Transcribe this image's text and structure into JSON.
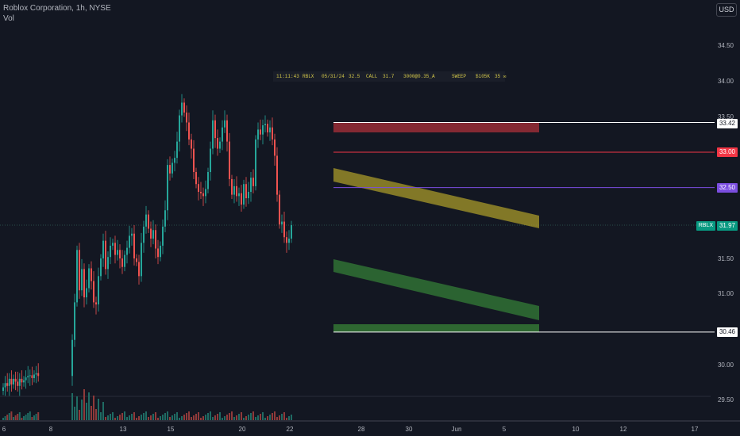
{
  "header": {
    "title": "Roblox Corporation, 1h, NYSE",
    "volume_label": "Vol",
    "currency": "USD"
  },
  "options_flow": {
    "time": "11:11:43",
    "ticker": "RBLX",
    "expiry": "05/31/24",
    "strike": "32.5",
    "type": "CALL",
    "ref_price": "31.7",
    "fill": "3000@0.35_A",
    "kind": "SWEEP",
    "premium": "$105K",
    "extra": "35 ✉"
  },
  "colors": {
    "background": "#131722",
    "up": "#26a69a",
    "down": "#ef5350",
    "red_zone": "#8a2a35",
    "yellow_channel": "#a89a2a",
    "green_channel": "#2f6b33",
    "purple_line": "#7b4ee0",
    "red_line": "#f23645",
    "ticker_label": "#089981"
  },
  "levels": [
    {
      "label": "33.42",
      "value": 33.42,
      "style": "white"
    },
    {
      "label": "33.00",
      "value": 33.0,
      "style": "red"
    },
    {
      "label": "32.50",
      "value": 32.5,
      "style": "purple"
    },
    {
      "label": "30.46",
      "value": 30.46,
      "style": "white"
    }
  ],
  "ticker_label": {
    "name": "RBLX",
    "price": "31.97",
    "value": 31.97
  },
  "chart_data": {
    "type": "candlestick",
    "interval": "1h",
    "ylim": [
      29.43,
      34.85
    ],
    "y_ticks": [
      "34.50",
      "34.00",
      "33.50",
      "31.50",
      "31.00",
      "30.00",
      "29.50"
    ],
    "x_ticks": [
      "6",
      "8",
      "13",
      "15",
      "20",
      "22",
      "28",
      "30",
      "Jun",
      "5",
      "10",
      "12",
      "17"
    ],
    "close_series": [
      29.68,
      29.74,
      29.7,
      29.8,
      29.72,
      29.8,
      29.76,
      29.7,
      29.8,
      29.75,
      29.78,
      29.82,
      29.84,
      29.85,
      29.81,
      29.86,
      29.88,
      29.84,
      30.35,
      30.88,
      31.62,
      31.05,
      31.35,
      30.95,
      31.08,
      31.36,
      31.18,
      30.88,
      30.85,
      31.25,
      31.5,
      31.75,
      31.35,
      31.52,
      31.68,
      31.72,
      31.55,
      31.62,
      31.5,
      31.38,
      31.55,
      31.65,
      31.82,
      31.85,
      31.5,
      31.45,
      31.25,
      31.72,
      31.95,
      32.12,
      31.92,
      31.78,
      31.9,
      31.64,
      31.52,
      31.68,
      31.95,
      32.18,
      32.82,
      32.7,
      32.85,
      32.92,
      33.15,
      33.52,
      33.7,
      33.56,
      33.42,
      33.18,
      33.05,
      32.72,
      32.55,
      32.44,
      32.42,
      32.38,
      32.48,
      32.72,
      33.05,
      33.45,
      33.2,
      33.05,
      33.15,
      33.35,
      33.45,
      33.15,
      32.62,
      32.4,
      32.52,
      32.38,
      32.42,
      32.26,
      32.55,
      32.35,
      32.44,
      32.64,
      32.52,
      33.18,
      33.32,
      33.25,
      33.38,
      33.4,
      33.28,
      33.35,
      33.18,
      32.95,
      32.4,
      31.98,
      32.02,
      31.8,
      31.72,
      31.78,
      31.97
    ],
    "volume_ylim": [
      0,
      10
    ],
    "indicator": "Vol",
    "series": [
      {
        "name": "RBLX",
        "last": 31.97
      }
    ]
  }
}
